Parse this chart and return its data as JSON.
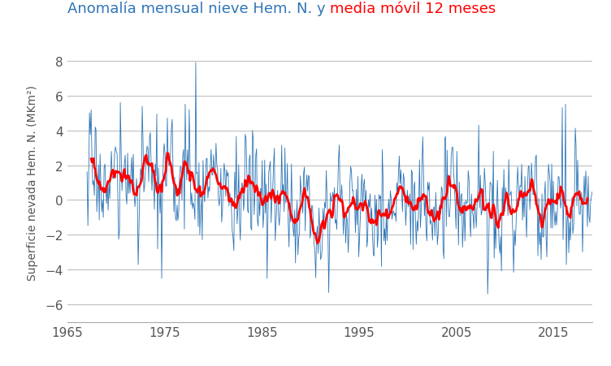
{
  "title_part1": "Anomalía mensual nieve Hem. N. y",
  "title_part2": "media móvil 12 meses",
  "ylabel": "Superficie nevada Hem. N. (MKm²)",
  "xlim": [
    1966.5,
    2019
  ],
  "ylim": [
    -7,
    9
  ],
  "yticks": [
    -6,
    -4,
    -2,
    0,
    2,
    4,
    6,
    8
  ],
  "xticks": [
    1965,
    1975,
    1985,
    1995,
    2005,
    2015
  ],
  "line_color": "#2E75B6",
  "ma_color": "#FF0000",
  "background_color": "#FFFFFF",
  "grid_color": "#BFBFBF",
  "title_color1": "#2E75B6",
  "title_color2": "#FF0000",
  "start_year": 1967,
  "end_year": 2018,
  "ma_window": 12
}
